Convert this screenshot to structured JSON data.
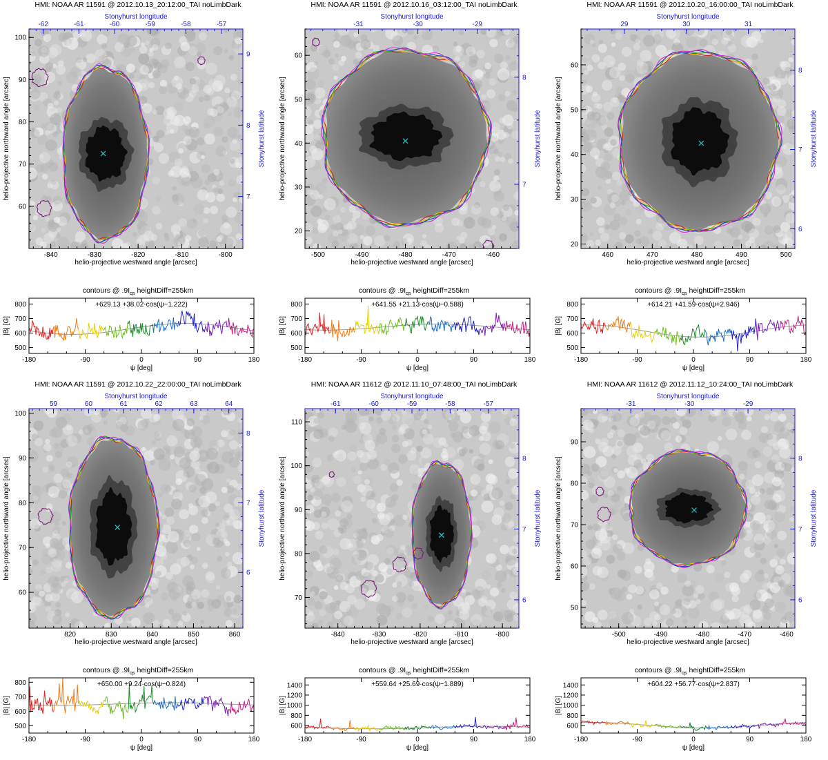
{
  "palette": {
    "accent": "#1a1ae6",
    "contours": [
      "#cc2222",
      "#e8c000",
      "#22aa22",
      "#2040d0",
      "#d030d0",
      "#7a1f7a"
    ],
    "rainbow": [
      "#e02020",
      "#f07a10",
      "#e6d000",
      "#70c020",
      "#1a8a2a",
      "#1f6fc0",
      "#2020c8",
      "#7a20b0",
      "#c02080"
    ],
    "fit_line": "#999999",
    "marker": "#22cccc"
  },
  "labels": {
    "top_axis": "Stonyhurst longitude",
    "right_axis": "Stonyhurst latitude",
    "x_axis": "helio-projective westward angle [arcsec]",
    "y_axis": "helio-projective northward angle [arcsec]",
    "contour_title_prefix": "contours @ .9I",
    "contour_title_sub": "qs",
    "contour_title_suffix": " heightDiff=255km",
    "psi_axis": "ψ [deg]",
    "b_axis": "|B| [G]"
  },
  "chart_data": [
    {
      "type": "image",
      "title": "HMI: NOAA AR 11591 @ 2012.10.13_20:12:00_TAI noLimbDark",
      "xlim": [
        -845,
        -796
      ],
      "ylim": [
        50,
        102
      ],
      "xticks": [
        -840,
        -830,
        -820,
        -810,
        -800
      ],
      "yticks": [
        60,
        70,
        80,
        90,
        100
      ],
      "lon_range": [
        -62.4,
        -56.4
      ],
      "lon_ticks": [
        -62,
        -61,
        -60,
        -59,
        -58,
        -57
      ],
      "lat_range": [
        6.27,
        9.35
      ],
      "lat_ticks": [
        7,
        8,
        9
      ],
      "spot": {
        "cx": -827.5,
        "cy": 72.5,
        "rx": 9.5,
        "ry": 20,
        "umbra_rx": 4.5,
        "umbra_ry": 6.2
      },
      "marker": {
        "x": -828,
        "y": 72.5
      },
      "extra_contours": [
        [
          -841.5,
          59.5,
          1.6
        ],
        [
          -805.5,
          94.5,
          0.8
        ],
        [
          -842.5,
          90.5,
          1.8
        ]
      ],
      "line": {
        "type": "line",
        "xlim": [
          -180,
          180
        ],
        "xticks": [
          -180,
          -90,
          0,
          90,
          180
        ],
        "ylim": [
          460,
          840
        ],
        "yticks": [
          500,
          600,
          700,
          800
        ],
        "fit": "+629.13 +38.02·cos(ψ−1.222)",
        "fit_params": {
          "a": 629.13,
          "b": 38.02,
          "phase": -1.222
        }
      }
    },
    {
      "type": "image",
      "title": "HMI: NOAA AR 11591 @ 2012.10.16_03:12:00_TAI noLimbDark",
      "xlim": [
        -503,
        -454
      ],
      "ylim": [
        16,
        66
      ],
      "xticks": [
        -500,
        -490,
        -480,
        -470,
        -460
      ],
      "yticks": [
        20,
        30,
        40,
        50,
        60
      ],
      "lon_range": [
        -31.9,
        -28.3
      ],
      "lon_ticks": [
        -31,
        -30,
        -29
      ],
      "lat_range": [
        6.4,
        8.45
      ],
      "lat_ticks": [
        7,
        8
      ],
      "spot": {
        "cx": -480,
        "cy": 41.5,
        "rx": 18.5,
        "ry": 19.5,
        "umbra_rx": 7.8,
        "umbra_ry": 5.2
      },
      "marker": {
        "x": -480,
        "y": 40.5
      },
      "extra_contours": [
        [
          -500.5,
          63,
          0.8
        ],
        [
          -461,
          16.5,
          1.2
        ]
      ],
      "line": {
        "type": "line",
        "xlim": [
          -180,
          180
        ],
        "xticks": [
          -180,
          -90,
          0,
          90,
          180
        ],
        "ylim": [
          460,
          840
        ],
        "yticks": [
          500,
          600,
          700,
          800
        ],
        "fit": "+641.55 +21.13·cos(ψ−0.588)",
        "fit_params": {
          "a": 641.55,
          "b": 21.13,
          "phase": -0.588
        }
      }
    },
    {
      "type": "image",
      "title": "HMI: NOAA AR 11591 @ 2012.10.20_16:00:00_TAI noLimbDark",
      "xlim": [
        454,
        502
      ],
      "ylim": [
        19,
        68
      ],
      "xticks": [
        460,
        470,
        480,
        490,
        500
      ],
      "yticks": [
        20,
        30,
        40,
        50,
        60
      ],
      "lon_range": [
        28.3,
        31.75
      ],
      "lon_ticks": [
        29,
        30,
        31
      ],
      "lat_range": [
        5.75,
        8.52
      ],
      "lat_ticks": [
        6,
        7,
        8
      ],
      "spot": {
        "cx": 480.5,
        "cy": 43,
        "rx": 17.5,
        "ry": 19.5,
        "umbra_rx": 6.2,
        "umbra_ry": 7
      },
      "marker": {
        "x": 481,
        "y": 42.5
      },
      "extra_contours": [],
      "line": {
        "type": "line",
        "xlim": [
          -180,
          180
        ],
        "xticks": [
          -180,
          -90,
          0,
          90,
          180
        ],
        "ylim": [
          460,
          840
        ],
        "yticks": [
          500,
          600,
          700,
          800
        ],
        "fit": "+614.21 +41.59·cos(ψ+2.946)",
        "fit_params": {
          "a": 614.21,
          "b": 41.59,
          "phase": 2.946
        }
      }
    },
    {
      "type": "image",
      "title": "HMI: NOAA AR 11591 @ 2012.10.22_22:00:00_TAI noLimbDark",
      "xlim": [
        810,
        862
      ],
      "ylim": [
        52,
        101
      ],
      "xticks": [
        820,
        830,
        840,
        850,
        860
      ],
      "yticks": [
        60,
        70,
        80,
        90,
        100
      ],
      "lon_range": [
        58.3,
        64.4
      ],
      "lon_ticks": [
        59,
        60,
        61,
        62,
        63,
        64
      ],
      "lat_range": [
        5.2,
        8.35
      ],
      "lat_ticks": [
        6,
        7,
        8
      ],
      "spot": {
        "cx": 830.5,
        "cy": 74.5,
        "rx": 10.5,
        "ry": 19.5,
        "umbra_rx": 4.2,
        "umbra_ry": 8
      },
      "marker": {
        "x": 831.5,
        "y": 74.5
      },
      "extra_contours": [
        [
          814,
          77,
          1.7
        ]
      ],
      "line": {
        "type": "line",
        "xlim": [
          -180,
          180
        ],
        "xticks": [
          -180,
          -90,
          0,
          90,
          180
        ],
        "ylim": [
          450,
          830
        ],
        "yticks": [
          500,
          600,
          700,
          800
        ],
        "fit": "+650.00 +9.24·cos(ψ−0.824)",
        "fit_params": {
          "a": 650.0,
          "b": 9.24,
          "phase": -0.824
        }
      }
    },
    {
      "type": "image",
      "title": "HMI: NOAA AR 11612 @ 2012.11.10_07:48:00_TAI noLimbDark",
      "xlim": [
        -848,
        -796
      ],
      "ylim": [
        63,
        113
      ],
      "xticks": [
        -840,
        -830,
        -820,
        -810,
        -800
      ],
      "yticks": [
        70,
        80,
        90,
        100,
        110
      ],
      "lon_range": [
        -61.8,
        -56.2
      ],
      "lon_ticks": [
        -61,
        -60,
        -59,
        -58,
        -57
      ],
      "lat_range": [
        5.6,
        8.7
      ],
      "lat_ticks": [
        6,
        7,
        8
      ],
      "spot": {
        "cx": -814.8,
        "cy": 84.5,
        "rx": 7,
        "ry": 16,
        "umbra_rx": 2.8,
        "umbra_ry": 6
      },
      "marker": {
        "x": -814.8,
        "y": 84.2
      },
      "extra_contours": [
        [
          -832.5,
          72,
          1.8
        ],
        [
          -825,
          77.5,
          1.6
        ],
        [
          -820.5,
          80,
          1.2
        ],
        [
          -841.5,
          98,
          0.6
        ]
      ],
      "line": {
        "type": "line",
        "xlim": [
          -180,
          180
        ],
        "xticks": [
          -180,
          -90,
          0,
          90,
          180
        ],
        "ylim": [
          450,
          1540
        ],
        "yticks": [
          600,
          800,
          1000,
          1200,
          1400
        ],
        "fit": "+559.64 +25.69·cos(ψ−1.889)",
        "fit_params": {
          "a": 559.64,
          "b": 25.69,
          "phase": -1.889
        }
      }
    },
    {
      "type": "image",
      "title": "HMI: NOAA AR 11612 @ 2012.11.12_10:24:00_TAI noLimbDark",
      "xlim": [
        -509,
        -458
      ],
      "ylim": [
        45,
        98
      ],
      "xticks": [
        -500,
        -490,
        -480,
        -470,
        -460
      ],
      "yticks": [
        50,
        60,
        70,
        80,
        90
      ],
      "lon_range": [
        -31.85,
        -28.2
      ],
      "lon_ticks": [
        -31,
        -30,
        -29
      ],
      "lat_range": [
        5.6,
        8.7
      ],
      "lat_ticks": [
        6,
        7,
        8
      ],
      "spot": {
        "cx": -483.5,
        "cy": 74,
        "rx": 13.5,
        "ry": 13.5,
        "umbra_rx": 5.5,
        "umbra_ry": 3.4
      },
      "marker": {
        "x": -482,
        "y": 73.5
      },
      "extra_contours": [
        [
          -503.5,
          72.5,
          1.5
        ],
        [
          -504.5,
          78,
          0.9
        ]
      ],
      "line": {
        "type": "line",
        "xlim": [
          -180,
          180
        ],
        "xticks": [
          -180,
          -90,
          0,
          90,
          180
        ],
        "ylim": [
          450,
          1540
        ],
        "yticks": [
          600,
          800,
          1000,
          1200,
          1400
        ],
        "fit": "+604.22 +56.77·cos(ψ+2.837)",
        "fit_params": {
          "a": 604.22,
          "b": 56.77,
          "phase": 2.837
        }
      }
    }
  ]
}
